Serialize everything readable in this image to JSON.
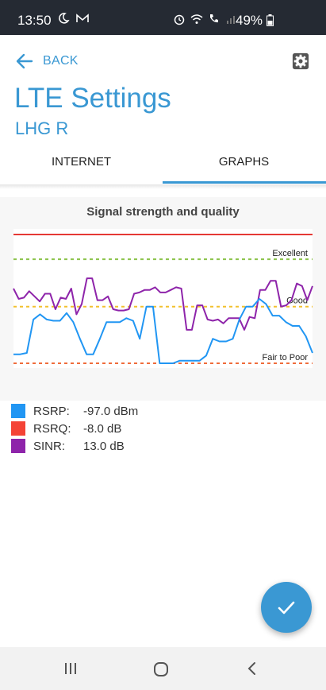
{
  "statusbar": {
    "time": "13:50",
    "left_icons": [
      "moon-icon",
      "mail-icon"
    ],
    "right_icons": [
      "alarm-icon",
      "wifi-icon",
      "wifi-call-icon",
      "signal-icon"
    ],
    "battery": "49%"
  },
  "header": {
    "back_label": "BACK",
    "title": "LTE Settings",
    "subtitle": "LHG R",
    "settings_icon": "gear-icon"
  },
  "tabs": [
    {
      "label": "INTERNET",
      "active": false
    },
    {
      "label": "GRAPHS",
      "active": true
    }
  ],
  "chart_data": {
    "type": "line",
    "title": "Signal strength and quality",
    "reference_lines": [
      {
        "label": "",
        "color": "#e53935",
        "style": "solid",
        "level": 1.0
      },
      {
        "label": "Excellent",
        "color": "#8bc34a",
        "style": "dashed",
        "level": 0.808
      },
      {
        "label": "Good",
        "color": "#f2c12e",
        "style": "dashed",
        "level": 0.44
      },
      {
        "label": "Fair to Poor",
        "color": "#ef6c3b",
        "style": "dashed",
        "level": 0.0
      }
    ],
    "series": [
      {
        "name": "SINR",
        "color": "#8e24aa",
        "values": [
          0.58,
          0.5,
          0.51,
          0.56,
          0.52,
          0.48,
          0.54,
          0.54,
          0.42,
          0.51,
          0.5,
          0.58,
          0.38,
          0.46,
          0.66,
          0.66,
          0.49,
          0.49,
          0.52,
          0.42,
          0.41,
          0.41,
          0.42,
          0.54,
          0.55,
          0.57,
          0.57,
          0.59,
          0.55,
          0.55,
          0.57,
          0.59,
          0.58,
          0.26,
          0.26,
          0.45,
          0.45,
          0.34,
          0.33,
          0.34,
          0.31,
          0.35,
          0.35,
          0.35,
          0.26,
          0.36,
          0.35,
          0.57,
          0.57,
          0.64,
          0.64,
          0.44,
          0.45,
          0.49,
          0.62,
          0.6,
          0.49,
          0.6
        ]
      },
      {
        "name": "RSRP",
        "color": "#2196f3",
        "values": [
          0.07,
          0.07,
          0.08,
          0.34,
          0.38,
          0.34,
          0.33,
          0.33,
          0.39,
          0.32,
          0.19,
          0.07,
          0.07,
          0.19,
          0.32,
          0.32,
          0.32,
          0.35,
          0.33,
          0.19,
          0.44,
          0.44,
          0.0,
          0.0,
          0.0,
          0.02,
          0.02,
          0.02,
          0.02,
          0.06,
          0.19,
          0.17,
          0.17,
          0.19,
          0.34,
          0.44,
          0.44,
          0.5,
          0.46,
          0.37,
          0.37,
          0.32,
          0.29,
          0.29,
          0.21,
          0.08
        ]
      },
      {
        "name": "RSRQ",
        "color": "#f44336",
        "values": []
      }
    ]
  },
  "legend": [
    {
      "name": "RSRP",
      "label": "RSRP:",
      "value": "-97.0 dBm",
      "color": "#2196f3"
    },
    {
      "name": "RSRQ",
      "label": "RSRQ:",
      "value": "-8.0 dB",
      "color": "#f44336"
    },
    {
      "name": "SINR",
      "label": "SINR:",
      "value": "13.0 dB",
      "color": "#8e24aa"
    }
  ],
  "fab": {
    "icon": "check-icon"
  },
  "navbar": {
    "icons": [
      "recents-icon",
      "home-icon",
      "back-nav-icon"
    ]
  }
}
